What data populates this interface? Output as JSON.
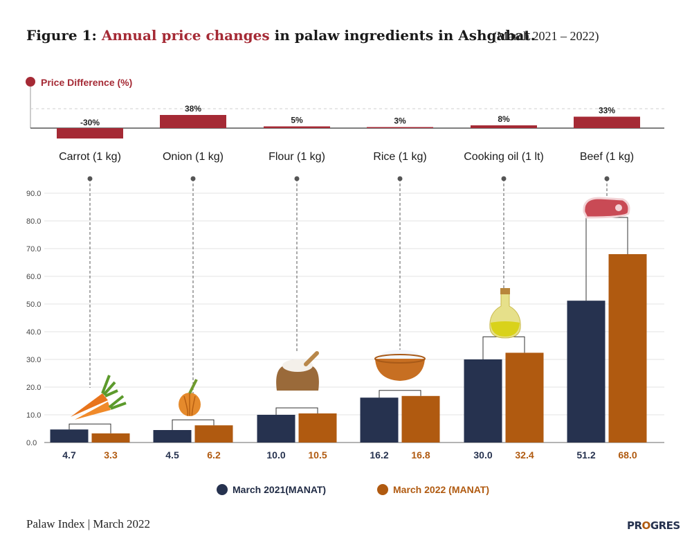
{
  "title": {
    "prefix": "Figure 1: ",
    "highlight": "Annual price changes",
    "rest": " in palaw ingredients in Ashgabat.",
    "range": "(March 2021 – 2022)"
  },
  "colors": {
    "accent": "#a52a35",
    "series_2021": "#26324f",
    "series_2022": "#b05a10",
    "grid": "#e3e3e3"
  },
  "chart_data": [
    {
      "type": "bar",
      "title": "Price Difference (%)",
      "categories": [
        "Carrot (1 kg)",
        "Onion (1 kg)",
        "Flour (1 kg)",
        "Rice (1 kg)",
        "Cooking oil (1 lt)",
        "Beef (1 kg)"
      ],
      "values": [
        -30,
        38,
        5,
        3,
        8,
        33
      ],
      "labels": [
        "-30%",
        "38%",
        "5%",
        "3%",
        "8%",
        "33%"
      ]
    },
    {
      "type": "bar",
      "categories": [
        "Carrot (1 kg)",
        "Onion (1 kg)",
        "Flour (1 kg)",
        "Rice (1 kg)",
        "Cooking oil (1 lt)",
        "Beef (1 kg)"
      ],
      "series": [
        {
          "name": "March 2021(MANAT)",
          "values": [
            4.7,
            4.5,
            10.0,
            16.2,
            30.0,
            51.2
          ],
          "labels": [
            "4.7",
            "4.5",
            "10.0",
            "16.2",
            "30.0",
            "51.2"
          ]
        },
        {
          "name": "March 2022 (MANAT)",
          "values": [
            3.3,
            6.2,
            10.5,
            16.8,
            32.4,
            68.0
          ],
          "labels": [
            "3.3",
            "6.2",
            "10.5",
            "16.8",
            "32.4",
            "68.0"
          ]
        }
      ],
      "yticks": [
        "0.0",
        "10.0",
        "20.0",
        "30.0",
        "40.0",
        "50.0",
        "60.0",
        "70.0",
        "80.0",
        "90.0"
      ],
      "ylim": [
        0,
        90
      ],
      "grid": true,
      "legend": "bottom"
    }
  ],
  "icons": [
    "carrot-icon",
    "onion-icon",
    "flour-sack-icon",
    "rice-bowl-icon",
    "oil-bottle-icon",
    "beef-steak-icon"
  ],
  "footer": {
    "text": "Palaw Index | March 2022",
    "brand_left": "PR",
    "brand_mid": "O",
    "brand_right": "GRES"
  }
}
